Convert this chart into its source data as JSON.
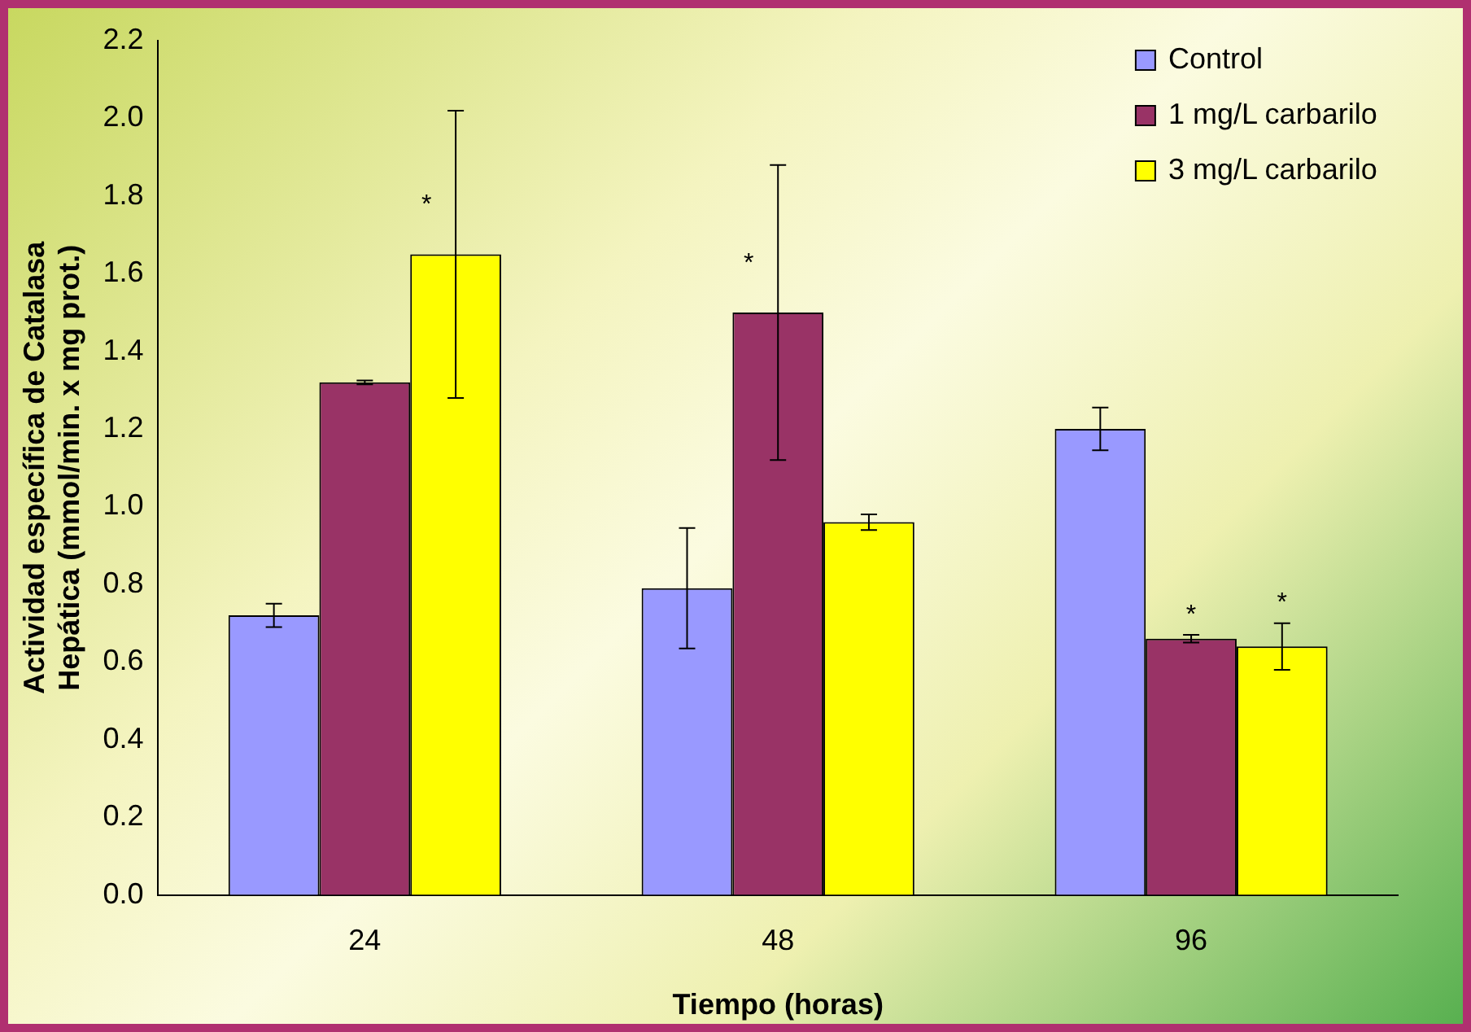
{
  "chart_data": {
    "type": "bar",
    "xlabel": "Tiempo (horas)",
    "ylabel": "Actividad específica de Catalasa\nHepática (mmol/min. x mg prot.)",
    "categories": [
      "24",
      "48",
      "96"
    ],
    "series": [
      {
        "name": "Control",
        "color": "#9999ff",
        "values": [
          0.72,
          0.79,
          1.2
        ],
        "errors": [
          0.03,
          0.155,
          0.055
        ]
      },
      {
        "name": "1 mg/L carbarilo",
        "color": "#993366",
        "values": [
          1.32,
          1.5,
          0.66
        ],
        "errors": [
          0.005,
          0.38,
          0.01
        ],
        "value_labels": [
          null,
          "*",
          "*"
        ]
      },
      {
        "name": "3 mg/L carbarilo",
        "color": "#ffff00",
        "values": [
          1.65,
          0.96,
          0.64
        ],
        "errors": [
          0.37,
          0.02,
          0.06
        ],
        "value_labels": [
          "*",
          null,
          "*"
        ]
      }
    ],
    "ylim": [
      0,
      2.2
    ],
    "yticks": [
      {
        "value": 0,
        "label": "0.0"
      },
      {
        "value": 0.2,
        "label": "0.2"
      },
      {
        "value": 0.4,
        "label": "0.4"
      },
      {
        "value": 0.6,
        "label": "0.6"
      },
      {
        "value": 0.8,
        "label": "0.8"
      },
      {
        "value": 1,
        "label": "1.0"
      },
      {
        "value": 1.2,
        "label": "1.2"
      },
      {
        "value": 1.4,
        "label": "1.4"
      },
      {
        "value": 1.6,
        "label": "1.6"
      },
      {
        "value": 1.8,
        "label": "1.8"
      },
      {
        "value": 2,
        "label": "2.0"
      },
      {
        "value": 2.2,
        "label": "2.2"
      }
    ],
    "grid": false,
    "legend": "top right"
  }
}
